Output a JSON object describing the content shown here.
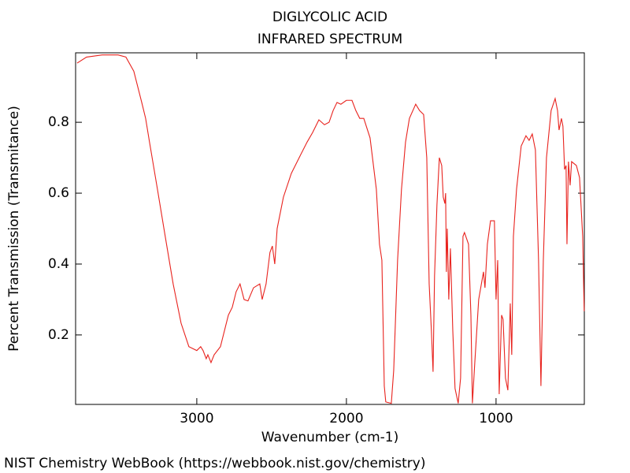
{
  "chart_data": {
    "type": "line",
    "title": "DIGLYCOLIC ACID",
    "subtitle": "INFRARED SPECTRUM",
    "xlabel": "Wavenumber (cm-1)",
    "ylabel": "Percent Transmission (Transmitance)",
    "source": "NIST Chemistry WebBook (https://webbook.nist.gov/chemistry)",
    "xlim": [
      3810,
      410
    ],
    "ylim": [
      0.004,
      0.996
    ],
    "xticks": [
      3000,
      2000,
      1000
    ],
    "yticks": [
      0.2,
      0.4,
      0.6,
      0.8
    ],
    "x": [
      3800,
      3737,
      3632,
      3526,
      3474,
      3421,
      3368,
      3342,
      3316,
      3263,
      3211,
      3158,
      3105,
      3053,
      3000,
      2974,
      2958,
      2937,
      2926,
      2905,
      2884,
      2842,
      2789,
      2763,
      2737,
      2711,
      2684,
      2658,
      2621,
      2579,
      2563,
      2537,
      2511,
      2495,
      2479,
      2463,
      2421,
      2368,
      2316,
      2263,
      2226,
      2184,
      2147,
      2116,
      2089,
      2063,
      2037,
      2000,
      1963,
      1937,
      1911,
      1884,
      1842,
      1800,
      1779,
      1763,
      1747,
      1737,
      1700,
      1684,
      1658,
      1632,
      1605,
      1579,
      1537,
      1511,
      1484,
      1463,
      1447,
      1432,
      1421,
      1411,
      1395,
      1379,
      1363,
      1353,
      1342,
      1337,
      1332,
      1326,
      1316,
      1305,
      1289,
      1274,
      1253,
      1237,
      1221,
      1211,
      1184,
      1168,
      1158,
      1142,
      1116,
      1084,
      1074,
      1058,
      1037,
      1011,
      1000,
      989,
      979,
      963,
      953,
      937,
      921,
      905,
      895,
      884,
      863,
      832,
      800,
      779,
      758,
      737,
      716,
      700,
      684,
      663,
      632,
      605,
      589,
      579,
      563,
      553,
      542,
      532,
      526,
      516,
      505,
      495,
      463,
      442,
      421,
      411
    ],
    "series": [
      {
        "name": "DIGLYCOLIC ACID",
        "color": "#e8231e",
        "values": [
          0.967,
          0.984,
          0.99,
          0.99,
          0.984,
          0.944,
          0.856,
          0.811,
          0.744,
          0.611,
          0.478,
          0.344,
          0.233,
          0.167,
          0.156,
          0.167,
          0.156,
          0.133,
          0.144,
          0.122,
          0.144,
          0.167,
          0.256,
          0.278,
          0.322,
          0.344,
          0.3,
          0.296,
          0.333,
          0.344,
          0.3,
          0.344,
          0.433,
          0.451,
          0.4,
          0.5,
          0.589,
          0.656,
          0.7,
          0.744,
          0.771,
          0.807,
          0.793,
          0.8,
          0.833,
          0.856,
          0.851,
          0.862,
          0.862,
          0.833,
          0.811,
          0.811,
          0.756,
          0.611,
          0.456,
          0.411,
          0.056,
          0.011,
          0.007,
          0.1,
          0.411,
          0.611,
          0.744,
          0.811,
          0.851,
          0.833,
          0.822,
          0.7,
          0.344,
          0.211,
          0.096,
          0.367,
          0.567,
          0.7,
          0.678,
          0.589,
          0.571,
          0.6,
          0.378,
          0.5,
          0.3,
          0.444,
          0.211,
          0.049,
          0.007,
          0.078,
          0.478,
          0.489,
          0.456,
          0.256,
          0.007,
          0.122,
          0.3,
          0.378,
          0.333,
          0.456,
          0.522,
          0.522,
          0.3,
          0.411,
          0.033,
          0.256,
          0.244,
          0.078,
          0.044,
          0.289,
          0.144,
          0.478,
          0.611,
          0.733,
          0.762,
          0.749,
          0.767,
          0.722,
          0.411,
          0.056,
          0.411,
          0.7,
          0.833,
          0.867,
          0.833,
          0.778,
          0.811,
          0.789,
          0.667,
          0.678,
          0.456,
          0.689,
          0.622,
          0.689,
          0.678,
          0.644,
          0.478,
          0.267
        ]
      }
    ]
  }
}
